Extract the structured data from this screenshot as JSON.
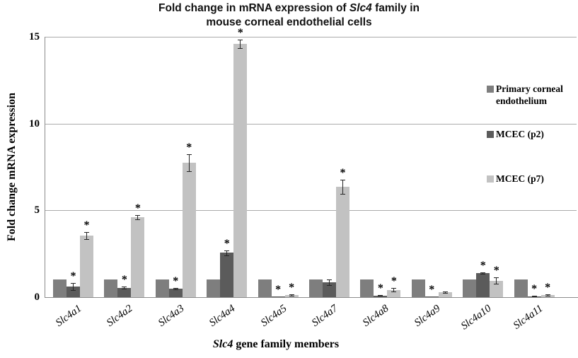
{
  "title": {
    "line1_pre": "Fold change in mRNA expression of ",
    "line1_italic": "Slc4",
    "line1_post": " family in",
    "line2": "mouse corneal endothelial cells"
  },
  "x_axis": {
    "title_italic": "Slc4",
    "title_rest": " gene family members"
  },
  "colors": {
    "grid": "#ababab",
    "axis": "#8c8c8c",
    "error_bar": "#262626",
    "background": "#ffffff"
  },
  "chart_data": {
    "type": "bar",
    "title": "Fold change in mRNA expression of Slc4 family in mouse corneal endothelial cells",
    "xlabel": "Slc4 gene family members",
    "ylabel": "Fold change mRNA expression",
    "ylim": [
      0,
      15
    ],
    "yticks": [
      0,
      5,
      10,
      15
    ],
    "grid": true,
    "legend_position": "right",
    "significance_marker": "*",
    "categories": [
      "Slc4a1",
      "Slc4a2",
      "Slc4a3",
      "Slc4a4",
      "Slc4a5",
      "Slc4a7",
      "Slc4a8",
      "Slc4a9",
      "Slc4a10",
      "Slc4a11"
    ],
    "series": [
      {
        "name": "Primary corneal endothelium",
        "color": "#7e7e7e",
        "values": [
          1.0,
          1.0,
          1.0,
          1.0,
          1.0,
          1.0,
          1.0,
          1.0,
          1.0,
          1.0
        ],
        "errors": [
          0,
          0,
          0,
          0,
          0,
          0,
          0,
          0,
          0,
          0
        ],
        "significant": [
          false,
          false,
          false,
          false,
          false,
          false,
          false,
          false,
          false,
          false
        ]
      },
      {
        "name": "MCEC (p2)",
        "color": "#5b5b5b",
        "values": [
          0.6,
          0.55,
          0.5,
          2.55,
          0.05,
          0.85,
          0.1,
          0.05,
          1.4,
          0.06
        ],
        "errors": [
          0.2,
          0.05,
          0.04,
          0.15,
          0,
          0.15,
          0.02,
          0,
          0.04,
          0.02
        ],
        "significant": [
          true,
          true,
          true,
          true,
          true,
          false,
          true,
          true,
          true,
          true
        ]
      },
      {
        "name": "MCEC (p7)",
        "color": "#c2c2c2",
        "values": [
          3.55,
          4.6,
          7.75,
          14.6,
          0.12,
          6.35,
          0.42,
          0.3,
          0.95,
          0.12
        ],
        "errors": [
          0.2,
          0.12,
          0.5,
          0.25,
          0.04,
          0.4,
          0.1,
          0.04,
          0.18,
          0.03
        ],
        "significant": [
          true,
          true,
          true,
          true,
          true,
          true,
          true,
          false,
          true,
          true
        ]
      }
    ]
  }
}
